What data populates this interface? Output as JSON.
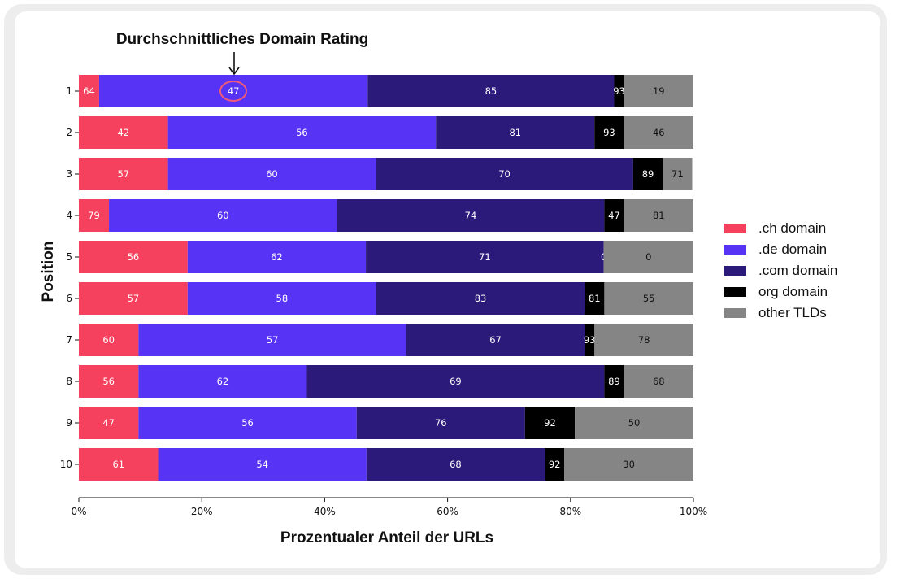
{
  "chart_data": {
    "type": "bar",
    "orientation": "horizontal",
    "stacked": true,
    "annotation": "Durchschnittliches Domain Rating",
    "annotated_value": "47",
    "xlabel": "Prozentualer Anteil der URLs",
    "ylabel": "Position",
    "xlim": [
      0,
      100
    ],
    "x_ticks": [
      "0%",
      "20%",
      "40%",
      "60%",
      "80%",
      "100%"
    ],
    "categories": [
      "1",
      "2",
      "3",
      "4",
      "5",
      "6",
      "7",
      "8",
      "9",
      "10"
    ],
    "series": [
      {
        "name": ".ch domain",
        "color": "#f5405e",
        "values": [
          3.3,
          14.5,
          14.5,
          4.9,
          17.7,
          17.7,
          9.7,
          9.7,
          9.7,
          12.9
        ],
        "labels": [
          "64",
          "42",
          "57",
          "79",
          "56",
          "57",
          "60",
          "56",
          "47",
          "61"
        ]
      },
      {
        "name": ".de domain",
        "color": "#5633f5",
        "values": [
          43.7,
          43.6,
          33.8,
          37.1,
          29.0,
          30.7,
          43.6,
          27.4,
          35.5,
          33.9
        ],
        "labels": [
          "47",
          "56",
          "60",
          "60",
          "62",
          "58",
          "57",
          "62",
          "56",
          "54"
        ]
      },
      {
        "name": ".com domain",
        "color": "#2b1a7a",
        "values": [
          40.1,
          25.8,
          41.9,
          43.5,
          38.7,
          33.9,
          29.0,
          48.4,
          27.4,
          29.0
        ],
        "labels": [
          "85",
          "81",
          "70",
          "74",
          "71",
          "83",
          "67",
          "69",
          "76",
          "68"
        ]
      },
      {
        "name": "org domain",
        "color": "#000000",
        "values": [
          1.6,
          4.8,
          4.8,
          3.2,
          0.0,
          3.2,
          1.6,
          3.2,
          8.1,
          3.2
        ],
        "labels": [
          "93",
          "93",
          "89",
          "47",
          "0",
          "81",
          "93",
          "89",
          "92",
          "92"
        ]
      },
      {
        "name": "other TLDs",
        "color": "#858585",
        "values": [
          11.3,
          11.3,
          4.8,
          11.3,
          14.6,
          14.5,
          16.1,
          11.3,
          19.3,
          21.0
        ],
        "labels": [
          "19",
          "46",
          "71",
          "81",
          "0",
          "55",
          "78",
          "68",
          "50",
          "30"
        ]
      }
    ]
  }
}
